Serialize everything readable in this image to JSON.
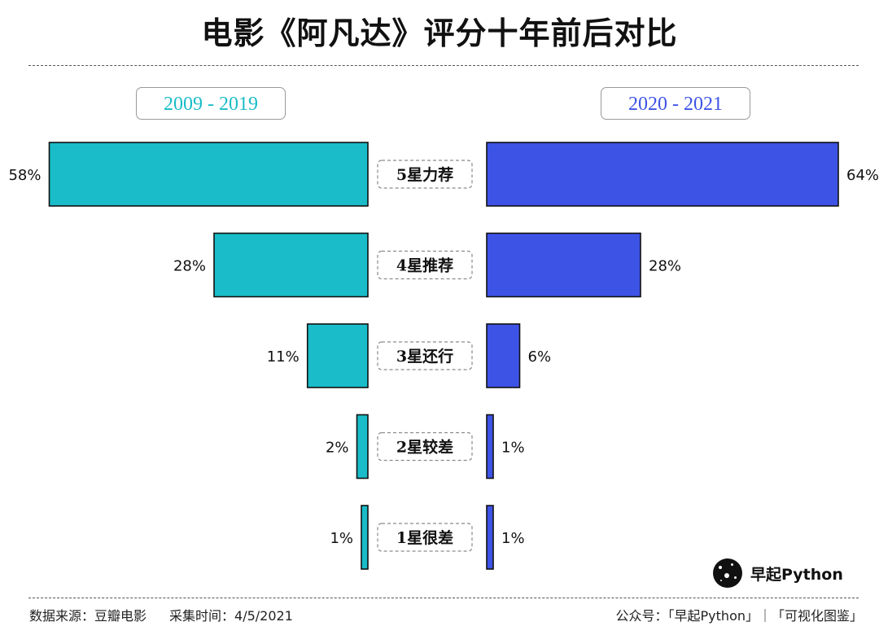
{
  "chart_data": {
    "type": "bar",
    "title": "电影《阿凡达》评分十年前后对比",
    "categories": [
      "5星力荐",
      "4星推荐",
      "3星还行",
      "2星较差",
      "1星很差"
    ],
    "series": [
      {
        "name": "2009 - 2019",
        "values": [
          58,
          28,
          11,
          2,
          1
        ],
        "labels": [
          "58%",
          "28%",
          "11%",
          "2%",
          "1%"
        ],
        "color": "#19bcc8"
      },
      {
        "name": "2020 - 2021",
        "values": [
          64,
          28,
          6,
          1,
          1
        ],
        "labels": [
          "64%",
          "28%",
          "6%",
          "1%",
          "1%"
        ],
        "color": "#3d53e6"
      }
    ],
    "xlim": [
      0,
      64
    ],
    "orientation": "horizontal-butterfly",
    "value_unit": "%"
  },
  "footer": {
    "source": "数据来源：豆瓣电影",
    "collected": "采集时间：4/5/2021",
    "account": "公众号：「早起Python」｜「可视化图鉴」"
  },
  "brand": {
    "name": "早起Python",
    "icon": "planet-logo-icon"
  }
}
